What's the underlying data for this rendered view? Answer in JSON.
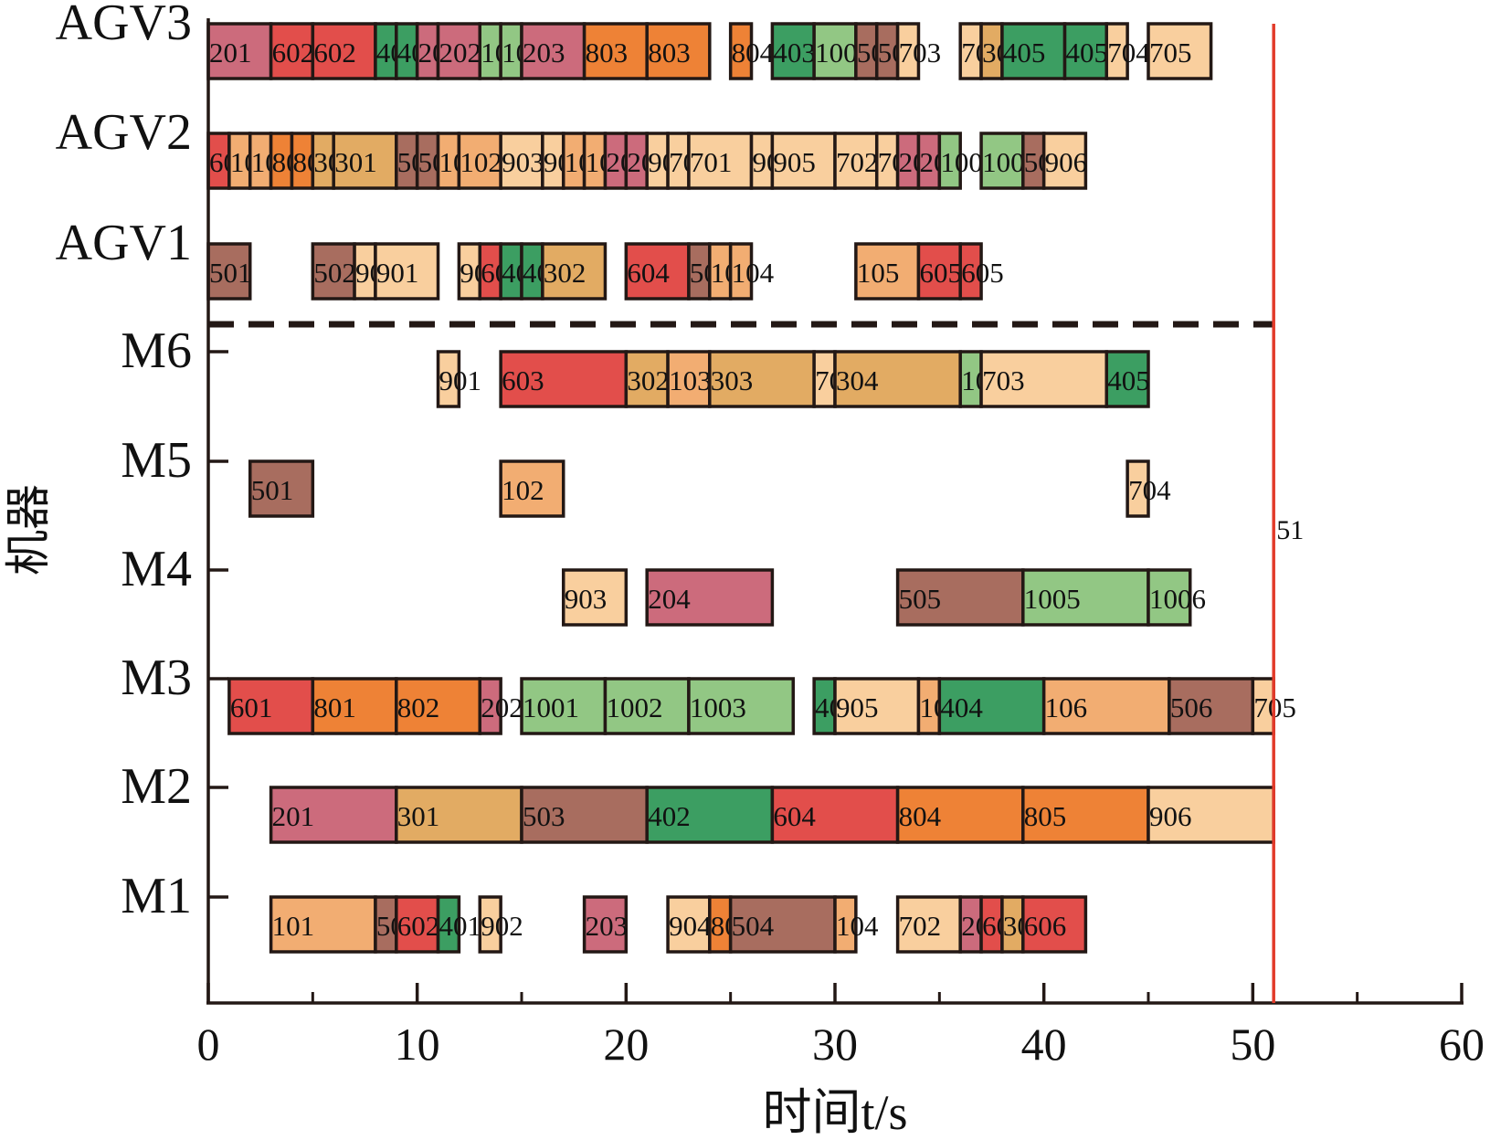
{
  "chart_data": {
    "type": "gantt",
    "xlabel": "时间t/s",
    "ylabel": "机器",
    "xlim": [
      0,
      60
    ],
    "xticks": [
      0,
      10,
      20,
      30,
      40,
      50,
      60
    ],
    "makespan": 51,
    "makespan_label": "51",
    "makespan_color": "#e23b2a",
    "rows": [
      "AGV3",
      "AGV2",
      "AGV1",
      "M6",
      "M5",
      "M4",
      "M3",
      "M2",
      "M1"
    ],
    "job_colors": {
      "1": "#f2ad72",
      "2": "#cc6b7c",
      "3": "#e2ab63",
      "4": "#3c9e62",
      "5": "#a86d5f",
      "6": "#e24e4b",
      "7": "#f9cf9e",
      "8": "#ee8236",
      "9": "#f9cf9e",
      "10": "#92c784"
    },
    "tasks": [
      {
        "row": "AGV3",
        "start": 0,
        "end": 3,
        "label": "201",
        "job": "2"
      },
      {
        "row": "AGV3",
        "start": 3,
        "end": 5,
        "label": "602",
        "job": "6"
      },
      {
        "row": "AGV3",
        "start": 5,
        "end": 8,
        "label": "602",
        "job": "6"
      },
      {
        "row": "AGV3",
        "start": 8,
        "end": 9,
        "label": "402",
        "job": "4"
      },
      {
        "row": "AGV3",
        "start": 9,
        "end": 10,
        "label": "402",
        "job": "4"
      },
      {
        "row": "AGV3",
        "start": 10,
        "end": 11,
        "label": "202",
        "job": "2"
      },
      {
        "row": "AGV3",
        "start": 11,
        "end": 13,
        "label": "202",
        "job": "2"
      },
      {
        "row": "AGV3",
        "start": 13,
        "end": 14,
        "label": "1001",
        "job": "10"
      },
      {
        "row": "AGV3",
        "start": 14,
        "end": 15,
        "label": "1001",
        "job": "10"
      },
      {
        "row": "AGV3",
        "start": 15,
        "end": 18,
        "label": "203",
        "job": "2"
      },
      {
        "row": "AGV3",
        "start": 18,
        "end": 21,
        "label": "803",
        "job": "8"
      },
      {
        "row": "AGV3",
        "start": 21,
        "end": 24,
        "label": "803",
        "job": "8"
      },
      {
        "row": "AGV3",
        "start": 25,
        "end": 26,
        "label": "804",
        "job": "8"
      },
      {
        "row": "AGV3",
        "start": 27,
        "end": 29,
        "label": "403",
        "job": "4"
      },
      {
        "row": "AGV3",
        "start": 29,
        "end": 31,
        "label": "1004",
        "job": "10"
      },
      {
        "row": "AGV3",
        "start": 31,
        "end": 32,
        "label": "505",
        "job": "5"
      },
      {
        "row": "AGV3",
        "start": 32,
        "end": 33,
        "label": "505",
        "job": "5"
      },
      {
        "row": "AGV3",
        "start": 33,
        "end": 34,
        "label": "703",
        "job": "7"
      },
      {
        "row": "AGV3",
        "start": 36,
        "end": 37,
        "label": "703",
        "job": "7"
      },
      {
        "row": "AGV3",
        "start": 37,
        "end": 38,
        "label": "304",
        "job": "3"
      },
      {
        "row": "AGV3",
        "start": 38,
        "end": 41,
        "label": "405",
        "job": "4"
      },
      {
        "row": "AGV3",
        "start": 41,
        "end": 43,
        "label": "405",
        "job": "4"
      },
      {
        "row": "AGV3",
        "start": 43,
        "end": 44,
        "label": "704",
        "job": "7"
      },
      {
        "row": "AGV3",
        "start": 45,
        "end": 48,
        "label": "705",
        "job": "7"
      },
      {
        "row": "AGV2",
        "start": 0,
        "end": 1,
        "label": "601",
        "job": "6"
      },
      {
        "row": "AGV2",
        "start": 1,
        "end": 2,
        "label": "101",
        "job": "1"
      },
      {
        "row": "AGV2",
        "start": 2,
        "end": 3,
        "label": "101",
        "job": "1"
      },
      {
        "row": "AGV2",
        "start": 3,
        "end": 4,
        "label": "801",
        "job": "8"
      },
      {
        "row": "AGV2",
        "start": 4,
        "end": 5,
        "label": "802",
        "job": "8"
      },
      {
        "row": "AGV2",
        "start": 5,
        "end": 6,
        "label": "301",
        "job": "3"
      },
      {
        "row": "AGV2",
        "start": 6,
        "end": 9,
        "label": "301",
        "job": "3"
      },
      {
        "row": "AGV2",
        "start": 9,
        "end": 10,
        "label": "503",
        "job": "5"
      },
      {
        "row": "AGV2",
        "start": 10,
        "end": 11,
        "label": "503",
        "job": "5"
      },
      {
        "row": "AGV2",
        "start": 11,
        "end": 12,
        "label": "102",
        "job": "1"
      },
      {
        "row": "AGV2",
        "start": 12,
        "end": 14,
        "label": "102",
        "job": "1"
      },
      {
        "row": "AGV2",
        "start": 14,
        "end": 16,
        "label": "903",
        "job": "9"
      },
      {
        "row": "AGV2",
        "start": 16,
        "end": 17,
        "label": "903",
        "job": "9"
      },
      {
        "row": "AGV2",
        "start": 17,
        "end": 18,
        "label": "103",
        "job": "1"
      },
      {
        "row": "AGV2",
        "start": 18,
        "end": 19,
        "label": "103",
        "job": "1"
      },
      {
        "row": "AGV2",
        "start": 19,
        "end": 20,
        "label": "204",
        "job": "2"
      },
      {
        "row": "AGV2",
        "start": 20,
        "end": 21,
        "label": "204",
        "job": "2"
      },
      {
        "row": "AGV2",
        "start": 21,
        "end": 22,
        "label": "904",
        "job": "9"
      },
      {
        "row": "AGV2",
        "start": 22,
        "end": 23,
        "label": "701",
        "job": "7"
      },
      {
        "row": "AGV2",
        "start": 23,
        "end": 26,
        "label": "701",
        "job": "7"
      },
      {
        "row": "AGV2",
        "start": 26,
        "end": 27,
        "label": "905",
        "job": "9"
      },
      {
        "row": "AGV2",
        "start": 27,
        "end": 30,
        "label": "905",
        "job": "9"
      },
      {
        "row": "AGV2",
        "start": 30,
        "end": 32,
        "label": "702",
        "job": "7"
      },
      {
        "row": "AGV2",
        "start": 32,
        "end": 33,
        "label": "702",
        "job": "7"
      },
      {
        "row": "AGV2",
        "start": 33,
        "end": 34,
        "label": "205",
        "job": "2"
      },
      {
        "row": "AGV2",
        "start": 34,
        "end": 35,
        "label": "206",
        "job": "2"
      },
      {
        "row": "AGV2",
        "start": 35,
        "end": 36,
        "label": "1005",
        "job": "10"
      },
      {
        "row": "AGV2",
        "start": 37,
        "end": 39,
        "label": "1005",
        "job": "10"
      },
      {
        "row": "AGV2",
        "start": 39,
        "end": 40,
        "label": "506",
        "job": "5"
      },
      {
        "row": "AGV2",
        "start": 40,
        "end": 42,
        "label": "906",
        "job": "9"
      },
      {
        "row": "AGV1",
        "start": 0,
        "end": 2,
        "label": "501",
        "job": "5"
      },
      {
        "row": "AGV1",
        "start": 5,
        "end": 7,
        "label": "502",
        "job": "5"
      },
      {
        "row": "AGV1",
        "start": 7,
        "end": 8,
        "label": "901",
        "job": "9"
      },
      {
        "row": "AGV1",
        "start": 8,
        "end": 11,
        "label": "901",
        "job": "9"
      },
      {
        "row": "AGV1",
        "start": 12,
        "end": 13,
        "label": "902",
        "job": "9"
      },
      {
        "row": "AGV1",
        "start": 13,
        "end": 14,
        "label": "603",
        "job": "6"
      },
      {
        "row": "AGV1",
        "start": 14,
        "end": 15,
        "label": "401",
        "job": "4"
      },
      {
        "row": "AGV1",
        "start": 15,
        "end": 16,
        "label": "401",
        "job": "4"
      },
      {
        "row": "AGV1",
        "start": 16,
        "end": 19,
        "label": "302",
        "job": "3"
      },
      {
        "row": "AGV1",
        "start": 20,
        "end": 23,
        "label": "604",
        "job": "6"
      },
      {
        "row": "AGV1",
        "start": 23,
        "end": 24,
        "label": "504",
        "job": "5"
      },
      {
        "row": "AGV1",
        "start": 24,
        "end": 25,
        "label": "104",
        "job": "1"
      },
      {
        "row": "AGV1",
        "start": 25,
        "end": 26,
        "label": "104",
        "job": "1"
      },
      {
        "row": "AGV1",
        "start": 31,
        "end": 34,
        "label": "105",
        "job": "1"
      },
      {
        "row": "AGV1",
        "start": 34,
        "end": 36,
        "label": "605",
        "job": "6"
      },
      {
        "row": "AGV1",
        "start": 36,
        "end": 37,
        "label": "605",
        "job": "6"
      },
      {
        "row": "M6",
        "start": 11,
        "end": 12,
        "label": "901",
        "job": "9"
      },
      {
        "row": "M6",
        "start": 14,
        "end": 20,
        "label": "603",
        "job": "6"
      },
      {
        "row": "M6",
        "start": 20,
        "end": 22,
        "label": "302",
        "job": "3"
      },
      {
        "row": "M6",
        "start": 22,
        "end": 24,
        "label": "103",
        "job": "1"
      },
      {
        "row": "M6",
        "start": 24,
        "end": 29,
        "label": "303",
        "job": "3"
      },
      {
        "row": "M6",
        "start": 29,
        "end": 30,
        "label": "701",
        "job": "7"
      },
      {
        "row": "M6",
        "start": 30,
        "end": 36,
        "label": "304",
        "job": "3"
      },
      {
        "row": "M6",
        "start": 36,
        "end": 37,
        "label": "1004",
        "job": "10"
      },
      {
        "row": "M6",
        "start": 37,
        "end": 43,
        "label": "703",
        "job": "7"
      },
      {
        "row": "M6",
        "start": 43,
        "end": 45,
        "label": "405",
        "job": "4"
      },
      {
        "row": "M5",
        "start": 2,
        "end": 5,
        "label": "501",
        "job": "5"
      },
      {
        "row": "M5",
        "start": 14,
        "end": 17,
        "label": "102",
        "job": "1"
      },
      {
        "row": "M5",
        "start": 44,
        "end": 45,
        "label": "704",
        "job": "7"
      },
      {
        "row": "M4",
        "start": 17,
        "end": 20,
        "label": "903",
        "job": "9"
      },
      {
        "row": "M4",
        "start": 21,
        "end": 27,
        "label": "204",
        "job": "2"
      },
      {
        "row": "M4",
        "start": 33,
        "end": 39,
        "label": "505",
        "job": "5"
      },
      {
        "row": "M4",
        "start": 39,
        "end": 45,
        "label": "1005",
        "job": "10"
      },
      {
        "row": "M4",
        "start": 45,
        "end": 47,
        "label": "1006",
        "job": "10"
      },
      {
        "row": "M3",
        "start": 1,
        "end": 5,
        "label": "601",
        "job": "6"
      },
      {
        "row": "M3",
        "start": 5,
        "end": 9,
        "label": "801",
        "job": "8"
      },
      {
        "row": "M3",
        "start": 9,
        "end": 13,
        "label": "802",
        "job": "8"
      },
      {
        "row": "M3",
        "start": 13,
        "end": 14,
        "label": "202",
        "job": "2"
      },
      {
        "row": "M3",
        "start": 15,
        "end": 19,
        "label": "1001",
        "job": "10"
      },
      {
        "row": "M3",
        "start": 19,
        "end": 23,
        "label": "1002",
        "job": "10"
      },
      {
        "row": "M3",
        "start": 23,
        "end": 28,
        "label": "1003",
        "job": "10"
      },
      {
        "row": "M3",
        "start": 29,
        "end": 30,
        "label": "403",
        "job": "4"
      },
      {
        "row": "M3",
        "start": 30,
        "end": 34,
        "label": "905",
        "job": "9"
      },
      {
        "row": "M3",
        "start": 34,
        "end": 35,
        "label": "105",
        "job": "1"
      },
      {
        "row": "M3",
        "start": 35,
        "end": 40,
        "label": "404",
        "job": "4"
      },
      {
        "row": "M3",
        "start": 40,
        "end": 46,
        "label": "106",
        "job": "1"
      },
      {
        "row": "M3",
        "start": 46,
        "end": 50,
        "label": "506",
        "job": "5"
      },
      {
        "row": "M3",
        "start": 50,
        "end": 51,
        "label": "705",
        "job": "7"
      },
      {
        "row": "M2",
        "start": 3,
        "end": 9,
        "label": "201",
        "job": "2"
      },
      {
        "row": "M2",
        "start": 9,
        "end": 15,
        "label": "301",
        "job": "3"
      },
      {
        "row": "M2",
        "start": 15,
        "end": 21,
        "label": "503",
        "job": "5"
      },
      {
        "row": "M2",
        "start": 21,
        "end": 27,
        "label": "402",
        "job": "4"
      },
      {
        "row": "M2",
        "start": 27,
        "end": 33,
        "label": "604",
        "job": "6"
      },
      {
        "row": "M2",
        "start": 33,
        "end": 39,
        "label": "804",
        "job": "8"
      },
      {
        "row": "M2",
        "start": 39,
        "end": 45,
        "label": "805",
        "job": "8"
      },
      {
        "row": "M2",
        "start": 45,
        "end": 51,
        "label": "906",
        "job": "9"
      },
      {
        "row": "M1",
        "start": 3,
        "end": 8,
        "label": "101",
        "job": "1"
      },
      {
        "row": "M1",
        "start": 8,
        "end": 9,
        "label": "502",
        "job": "5"
      },
      {
        "row": "M1",
        "start": 9,
        "end": 11,
        "label": "602",
        "job": "6"
      },
      {
        "row": "M1",
        "start": 11,
        "end": 12,
        "label": "401",
        "job": "4"
      },
      {
        "row": "M1",
        "start": 13,
        "end": 14,
        "label": "902",
        "job": "9"
      },
      {
        "row": "M1",
        "start": 18,
        "end": 20,
        "label": "203",
        "job": "2"
      },
      {
        "row": "M1",
        "start": 22,
        "end": 24,
        "label": "904",
        "job": "9"
      },
      {
        "row": "M1",
        "start": 24,
        "end": 25,
        "label": "803",
        "job": "8"
      },
      {
        "row": "M1",
        "start": 25,
        "end": 30,
        "label": "504",
        "job": "5"
      },
      {
        "row": "M1",
        "start": 30,
        "end": 31,
        "label": "104",
        "job": "1"
      },
      {
        "row": "M1",
        "start": 33,
        "end": 36,
        "label": "702",
        "job": "7"
      },
      {
        "row": "M1",
        "start": 36,
        "end": 37,
        "label": "206",
        "job": "2"
      },
      {
        "row": "M1",
        "start": 37,
        "end": 38,
        "label": "605",
        "job": "6"
      },
      {
        "row": "M1",
        "start": 38,
        "end": 39,
        "label": "304",
        "job": "3"
      },
      {
        "row": "M1",
        "start": 39,
        "end": 42,
        "label": "606",
        "job": "6"
      }
    ]
  }
}
